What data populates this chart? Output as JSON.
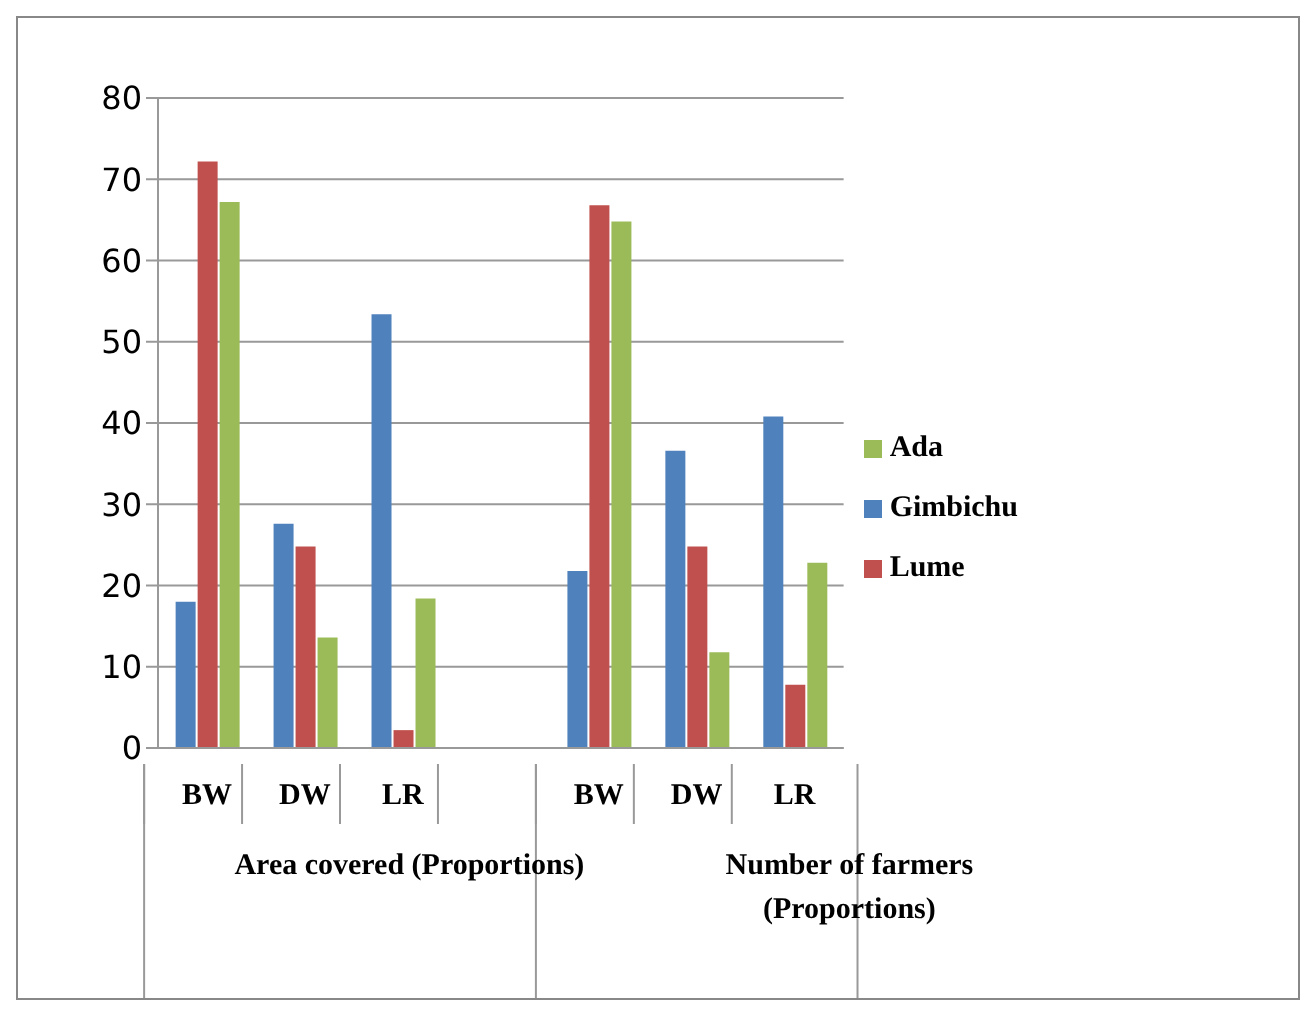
{
  "chart_data": {
    "type": "bar",
    "categories": [
      "BW",
      "DW",
      "LR",
      null,
      "BW",
      "DW",
      "LR"
    ],
    "series": [
      {
        "name": "Gimbichu",
        "color": "#4f81bd",
        "values": [
          18,
          27.6,
          53.4,
          null,
          21.8,
          36.6,
          40.8
        ]
      },
      {
        "name": "Lume",
        "color": "#c0504d",
        "values": [
          72.2,
          24.8,
          2.2,
          null,
          66.8,
          24.8,
          7.8
        ]
      },
      {
        "name": "Ada",
        "color": "#9bbb59",
        "values": [
          67.2,
          13.6,
          18.4,
          null,
          64.8,
          11.8,
          22.8
        ]
      }
    ],
    "ylim": [
      0,
      80
    ],
    "yticks": [
      0,
      10,
      20,
      30,
      40,
      50,
      60,
      70,
      80
    ],
    "grid": "y",
    "legend": "right",
    "annotations": [
      "Area covered (Proportions)",
      "Number of farmers (Proportions)"
    ]
  }
}
